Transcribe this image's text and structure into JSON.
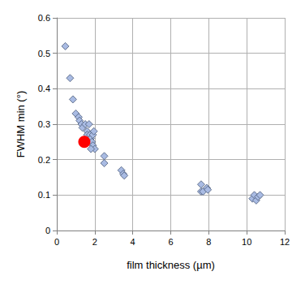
{
  "chart_data": {
    "type": "scatter",
    "x_label": "film thickness (µm)",
    "y_label": "FWHM min (°)",
    "xlim": [
      0,
      12
    ],
    "xticks": [
      0,
      2,
      4,
      6,
      8,
      10,
      12
    ],
    "ylim": [
      0,
      0.6
    ],
    "yticks": [
      0,
      0.1,
      0.2,
      0.3,
      0.4,
      0.5,
      0.6
    ],
    "grid": true,
    "series": [
      {
        "color": "#a9bbe3",
        "marker": "diamond",
        "x": [
          0.45,
          0.7,
          0.85,
          1.0,
          1.15,
          1.2,
          1.3,
          1.35,
          1.5,
          1.6,
          1.6,
          1.7,
          1.75,
          1.8,
          1.85,
          1.9,
          1.9,
          1.95,
          2.0,
          1.8,
          2.5,
          2.5,
          3.4,
          3.5,
          3.55,
          7.6,
          7.6,
          7.7,
          7.9,
          7.95,
          10.3,
          10.4,
          10.5,
          10.6,
          10.7
        ],
        "values": [
          0.52,
          0.43,
          0.37,
          0.33,
          0.32,
          0.31,
          0.3,
          0.29,
          0.3,
          0.28,
          0.27,
          0.3,
          0.27,
          0.26,
          0.25,
          0.24,
          0.27,
          0.28,
          0.23,
          0.23,
          0.21,
          0.19,
          0.17,
          0.16,
          0.155,
          0.13,
          0.11,
          0.11,
          0.12,
          0.115,
          0.09,
          0.1,
          0.085,
          0.095,
          0.1
        ]
      },
      {
        "color": "#ff0000",
        "marker": "circle",
        "x": [
          1.45
        ],
        "values": [
          0.25
        ]
      }
    ]
  }
}
